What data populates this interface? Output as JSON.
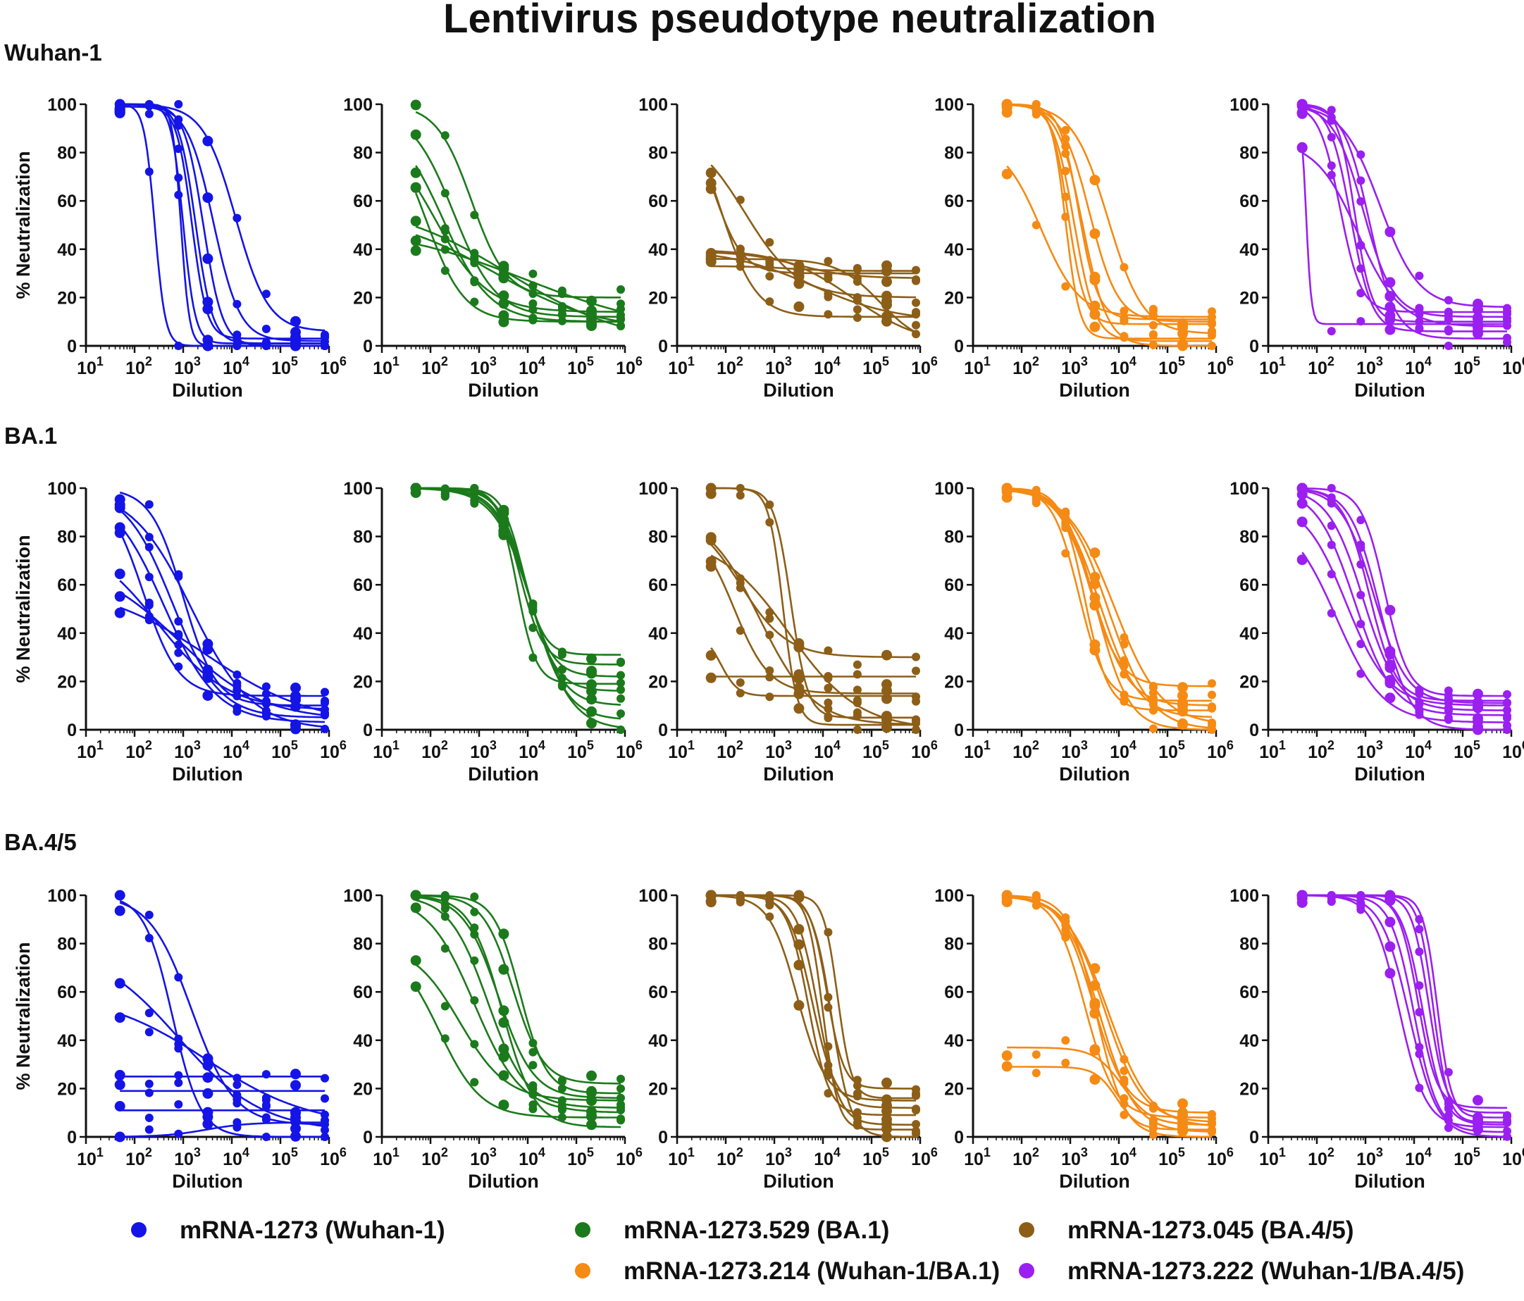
{
  "figure": {
    "title": "Lentivirus pseudotype neutralization"
  },
  "rows": [
    {
      "label": "Wuhan-1"
    },
    {
      "label": "BA.1"
    },
    {
      "label": "BA.4/5"
    }
  ],
  "legend": [
    {
      "label": "mRNA-1273 (Wuhan-1)",
      "color": "#1414e6"
    },
    {
      "label": "mRNA-1273.529 (BA.1)",
      "color": "#1b7a1b"
    },
    {
      "label": "mRNA-1273.045 (BA.4/5)",
      "color": "#8c5e17"
    },
    {
      "label": "mRNA-1273.214 (Wuhan-1/BA.1)",
      "color": "#f58a14"
    },
    {
      "label": "mRNA-1273.222 (Wuhan-1/BA.4/5)",
      "color": "#9a1ff0"
    }
  ],
  "chart_data": {
    "type": "scatter",
    "fit": "four-parameter logistic (curves per subject)",
    "xlabel": "Dilution",
    "ylabel": "% Neutralization",
    "xscale": "log10",
    "xlim": [
      10,
      1000000
    ],
    "ylim": [
      0,
      100
    ],
    "ytick_labels": [
      "0",
      "20",
      "40",
      "60",
      "80",
      "100"
    ],
    "xtick_labels": [
      {
        "base": "10",
        "exp": "1"
      },
      {
        "base": "10",
        "exp": "2"
      },
      {
        "base": "10",
        "exp": "3"
      },
      {
        "base": "10",
        "exp": "4"
      },
      {
        "base": "10",
        "exp": "5"
      },
      {
        "base": "10",
        "exp": "6"
      }
    ],
    "dilutions": [
      50,
      200,
      800,
      3200,
      12800,
      51200,
      204800,
      819200
    ],
    "panels": [
      {
        "row": 0,
        "vaccine": 0,
        "curves": [
          {
            "top": 100,
            "bottom": 0,
            "ic50": 260,
            "hill": 4
          },
          {
            "top": 100,
            "bottom": 1,
            "ic50": 1800,
            "hill": 2.5
          },
          {
            "top": 100,
            "bottom": 0,
            "ic50": 2600,
            "hill": 2.2
          },
          {
            "top": 100,
            "bottom": 2,
            "ic50": 4200,
            "hill": 1.6
          },
          {
            "top": 100,
            "bottom": 6,
            "ic50": 12000,
            "hill": 1.3
          },
          {
            "top": 100,
            "bottom": 1,
            "ic50": 1000,
            "hill": 3.5
          },
          {
            "top": 99,
            "bottom": 3,
            "ic50": 1500,
            "hill": 2.8
          },
          {
            "top": 100,
            "bottom": 0,
            "ic50": 900,
            "hill": 5
          }
        ]
      },
      {
        "row": 0,
        "vaccine": 1,
        "curves": [
          {
            "top": 100,
            "bottom": 20,
            "ic50": 700,
            "hill": 1.2
          },
          {
            "top": 98,
            "bottom": 12,
            "ic50": 300,
            "hill": 1.0
          },
          {
            "top": 95,
            "bottom": 10,
            "ic50": 180,
            "hill": 0.9
          },
          {
            "top": 92,
            "bottom": 14,
            "ic50": 120,
            "hill": 0.8
          },
          {
            "top": 60,
            "bottom": 0,
            "ic50": 4000,
            "hill": 0.35
          },
          {
            "top": 55,
            "bottom": 6,
            "ic50": 2000,
            "hill": 0.4
          },
          {
            "top": 95,
            "bottom": 10,
            "ic50": 80,
            "hill": 1.1
          },
          {
            "top": 50,
            "bottom": 5,
            "ic50": 9000,
            "hill": 0.3
          }
        ]
      },
      {
        "row": 0,
        "vaccine": 2,
        "curves": [
          {
            "top": 100,
            "bottom": 12,
            "ic50": 80,
            "hill": 1.2
          },
          {
            "top": 95,
            "bottom": 30,
            "ic50": 60,
            "hill": 1.5
          },
          {
            "top": 40,
            "bottom": 0,
            "ic50": 40000,
            "hill": 0.6
          },
          {
            "top": 39,
            "bottom": 28,
            "ic50": 3000,
            "hill": 0.8
          },
          {
            "top": 36,
            "bottom": 0,
            "ic50": 150000,
            "hill": 1.0
          },
          {
            "top": 40,
            "bottom": 10,
            "ic50": 6000,
            "hill": 0.5
          },
          {
            "top": 90,
            "bottom": 20,
            "ic50": 250,
            "hill": 0.8
          },
          {
            "top": 33,
            "bottom": 31,
            "ic50": 2000,
            "hill": 1
          }
        ]
      },
      {
        "row": 0,
        "vaccine": 3,
        "curves": [
          {
            "top": 100,
            "bottom": 9,
            "ic50": 900,
            "hill": 2.5
          },
          {
            "top": 100,
            "bottom": 2,
            "ic50": 1200,
            "hill": 2
          },
          {
            "top": 100,
            "bottom": 10,
            "ic50": 2500,
            "hill": 1.5
          },
          {
            "top": 100,
            "bottom": 5,
            "ic50": 6000,
            "hill": 1.2
          },
          {
            "top": 85,
            "bottom": 12,
            "ic50": 250,
            "hill": 1.1
          },
          {
            "top": 100,
            "bottom": 0,
            "ic50": 1800,
            "hill": 1.7
          },
          {
            "top": 100,
            "bottom": 11,
            "ic50": 1500,
            "hill": 2.2
          },
          {
            "top": 100,
            "bottom": 3,
            "ic50": 800,
            "hill": 3
          }
        ]
      },
      {
        "row": 0,
        "vaccine": 4,
        "curves": [
          {
            "top": 100,
            "bottom": 9,
            "ic50": 60,
            "hill": 8
          },
          {
            "top": 100,
            "bottom": 14,
            "ic50": 300,
            "hill": 2
          },
          {
            "top": 100,
            "bottom": 6,
            "ic50": 500,
            "hill": 2
          },
          {
            "top": 100,
            "bottom": 12,
            "ic50": 900,
            "hill": 1.4
          },
          {
            "top": 100,
            "bottom": 3,
            "ic50": 1200,
            "hill": 1.6
          },
          {
            "top": 100,
            "bottom": 16,
            "ic50": 2000,
            "hill": 1.1
          },
          {
            "top": 85,
            "bottom": 8,
            "ic50": 700,
            "hill": 1.0
          },
          {
            "top": 100,
            "bottom": 10,
            "ic50": 600,
            "hill": 2.5
          }
        ]
      },
      {
        "row": 1,
        "vaccine": 0,
        "curves": [
          {
            "top": 100,
            "bottom": 14,
            "ic50": 150,
            "hill": 1.2
          },
          {
            "top": 100,
            "bottom": 5,
            "ic50": 600,
            "hill": 0.9
          },
          {
            "top": 100,
            "bottom": 0,
            "ic50": 1500,
            "hill": 0.7
          },
          {
            "top": 80,
            "bottom": 8,
            "ic50": 300,
            "hill": 0.6
          },
          {
            "top": 70,
            "bottom": 4,
            "ic50": 800,
            "hill": 0.5
          },
          {
            "top": 60,
            "bottom": 2,
            "ic50": 3000,
            "hill": 0.4
          },
          {
            "top": 100,
            "bottom": 10,
            "ic50": 1000,
            "hill": 1.3
          },
          {
            "top": 100,
            "bottom": 3,
            "ic50": 400,
            "hill": 0.8
          }
        ]
      },
      {
        "row": 1,
        "vaccine": 1,
        "curves": [
          {
            "top": 100,
            "bottom": 31,
            "ic50": 8000,
            "hill": 2
          },
          {
            "top": 100,
            "bottom": 27,
            "ic50": 7000,
            "hill": 1.8
          },
          {
            "top": 100,
            "bottom": 22,
            "ic50": 9000,
            "hill": 1.6
          },
          {
            "top": 100,
            "bottom": 16,
            "ic50": 10000,
            "hill": 1.5
          },
          {
            "top": 100,
            "bottom": 10,
            "ic50": 11000,
            "hill": 1.3
          },
          {
            "top": 100,
            "bottom": 4,
            "ic50": 12000,
            "hill": 1.2
          },
          {
            "top": 100,
            "bottom": 0,
            "ic50": 13000,
            "hill": 1.1
          },
          {
            "top": 100,
            "bottom": 19,
            "ic50": 6000,
            "hill": 2.2
          }
        ]
      },
      {
        "row": 1,
        "vaccine": 2,
        "curves": [
          {
            "top": 100,
            "bottom": 2,
            "ic50": 1500,
            "hill": 3
          },
          {
            "top": 100,
            "bottom": 5,
            "ic50": 2200,
            "hill": 2.5
          },
          {
            "top": 90,
            "bottom": 2,
            "ic50": 500,
            "hill": 0.8
          },
          {
            "top": 85,
            "bottom": 15,
            "ic50": 150,
            "hill": 1.2
          },
          {
            "top": 22,
            "bottom": 22,
            "ic50": 1000,
            "hill": 1
          },
          {
            "top": 90,
            "bottom": 30,
            "ic50": 200,
            "hill": 0.9
          },
          {
            "top": 80,
            "bottom": 0,
            "ic50": 2000,
            "hill": 0.6
          },
          {
            "top": 40,
            "bottom": 14,
            "ic50": 80,
            "hill": 2.5
          }
        ]
      },
      {
        "row": 1,
        "vaccine": 3,
        "curves": [
          {
            "top": 100,
            "bottom": 18,
            "ic50": 2500,
            "hill": 1.4
          },
          {
            "top": 100,
            "bottom": 10,
            "ic50": 3000,
            "hill": 1.2
          },
          {
            "top": 100,
            "bottom": 5,
            "ic50": 4000,
            "hill": 1.1
          },
          {
            "top": 100,
            "bottom": 0,
            "ic50": 6000,
            "hill": 1.0
          },
          {
            "top": 100,
            "bottom": 12,
            "ic50": 1500,
            "hill": 1.6
          },
          {
            "top": 100,
            "bottom": 2,
            "ic50": 8000,
            "hill": 0.9
          },
          {
            "top": 100,
            "bottom": 8,
            "ic50": 2000,
            "hill": 1.8
          },
          {
            "top": 100,
            "bottom": 0,
            "ic50": 3500,
            "hill": 1.3
          }
        ]
      },
      {
        "row": 1,
        "vaccine": 4,
        "curves": [
          {
            "top": 100,
            "bottom": 12,
            "ic50": 1200,
            "hill": 1.6
          },
          {
            "top": 100,
            "bottom": 8,
            "ic50": 900,
            "hill": 1.2
          },
          {
            "top": 95,
            "bottom": 10,
            "ic50": 400,
            "hill": 1.0
          },
          {
            "top": 90,
            "bottom": 3,
            "ic50": 250,
            "hill": 0.9
          },
          {
            "top": 100,
            "bottom": 14,
            "ic50": 2500,
            "hill": 1.8
          },
          {
            "top": 100,
            "bottom": 0,
            "ic50": 2000,
            "hill": 1.4
          },
          {
            "top": 100,
            "bottom": 6,
            "ic50": 600,
            "hill": 1.1
          },
          {
            "top": 100,
            "bottom": 11,
            "ic50": 1500,
            "hill": 1.3
          }
        ]
      },
      {
        "row": 2,
        "vaccine": 0,
        "curves": [
          {
            "top": 100,
            "bottom": 0,
            "ic50": 600,
            "hill": 1.5
          },
          {
            "top": 100,
            "bottom": 5,
            "ic50": 1500,
            "hill": 1.0
          },
          {
            "top": 80,
            "bottom": 2,
            "ic50": 800,
            "hill": 0.5
          },
          {
            "top": 60,
            "bottom": 4,
            "ic50": 3000,
            "hill": 0.4
          },
          {
            "top": 25,
            "bottom": 25,
            "ic50": 1000,
            "hill": 1
          },
          {
            "top": 19,
            "bottom": 19,
            "ic50": 1000,
            "hill": 1
          },
          {
            "top": 11,
            "bottom": 11,
            "ic50": 1000,
            "hill": 1
          },
          {
            "top": 0,
            "bottom": 6,
            "ic50": 3000,
            "hill": 1
          }
        ]
      },
      {
        "row": 2,
        "vaccine": 1,
        "curves": [
          {
            "top": 100,
            "bottom": 22,
            "ic50": 5000,
            "hill": 1.4
          },
          {
            "top": 100,
            "bottom": 16,
            "ic50": 2500,
            "hill": 1.2
          },
          {
            "top": 100,
            "bottom": 12,
            "ic50": 1500,
            "hill": 1.1
          },
          {
            "top": 100,
            "bottom": 10,
            "ic50": 800,
            "hill": 0.9
          },
          {
            "top": 80,
            "bottom": 15,
            "ic50": 400,
            "hill": 0.9
          },
          {
            "top": 80,
            "bottom": 8,
            "ic50": 150,
            "hill": 1.0
          },
          {
            "top": 100,
            "bottom": 4,
            "ic50": 3000,
            "hill": 1.3
          },
          {
            "top": 100,
            "bottom": 18,
            "ic50": 7000,
            "hill": 1.6
          }
        ]
      },
      {
        "row": 2,
        "vaccine": 2,
        "curves": [
          {
            "top": 100,
            "bottom": 15,
            "ic50": 3000,
            "hill": 1.5
          },
          {
            "top": 100,
            "bottom": 5,
            "ic50": 8000,
            "hill": 2
          },
          {
            "top": 100,
            "bottom": 20,
            "ic50": 12000,
            "hill": 2.5
          },
          {
            "top": 100,
            "bottom": 0,
            "ic50": 15000,
            "hill": 2.2
          },
          {
            "top": 100,
            "bottom": 12,
            "ic50": 6000,
            "hill": 1.8
          },
          {
            "top": 100,
            "bottom": 3,
            "ic50": 10000,
            "hill": 2.8
          },
          {
            "top": 100,
            "bottom": 16,
            "ic50": 20000,
            "hill": 3
          },
          {
            "top": 100,
            "bottom": 9,
            "ic50": 5000,
            "hill": 2
          }
        ]
      },
      {
        "row": 2,
        "vaccine": 3,
        "curves": [
          {
            "top": 100,
            "bottom": 10,
            "ic50": 3000,
            "hill": 1.3
          },
          {
            "top": 100,
            "bottom": 2,
            "ic50": 4000,
            "hill": 1.2
          },
          {
            "top": 100,
            "bottom": 6,
            "ic50": 5000,
            "hill": 1.1
          },
          {
            "top": 100,
            "bottom": 0,
            "ic50": 3500,
            "hill": 1.5
          },
          {
            "top": 37,
            "bottom": 5,
            "ic50": 12000,
            "hill": 1.5
          },
          {
            "top": 29,
            "bottom": 3,
            "ic50": 9000,
            "hill": 2
          },
          {
            "top": 100,
            "bottom": 8,
            "ic50": 2000,
            "hill": 1.4
          },
          {
            "top": 100,
            "bottom": 4,
            "ic50": 6000,
            "hill": 1.0
          }
        ]
      },
      {
        "row": 2,
        "vaccine": 4,
        "curves": [
          {
            "top": 100,
            "bottom": 10,
            "ic50": 20000,
            "hill": 2.5
          },
          {
            "top": 100,
            "bottom": 5,
            "ic50": 15000,
            "hill": 2
          },
          {
            "top": 100,
            "bottom": 8,
            "ic50": 30000,
            "hill": 3
          },
          {
            "top": 100,
            "bottom": 2,
            "ic50": 10000,
            "hill": 1.8
          },
          {
            "top": 100,
            "bottom": 12,
            "ic50": 12000,
            "hill": 2.2
          },
          {
            "top": 100,
            "bottom": 0,
            "ic50": 8000,
            "hill": 1.5
          },
          {
            "top": 100,
            "bottom": 6,
            "ic50": 25000,
            "hill": 2.8
          },
          {
            "top": 100,
            "bottom": 4,
            "ic50": 5000,
            "hill": 1.6
          }
        ]
      }
    ]
  }
}
